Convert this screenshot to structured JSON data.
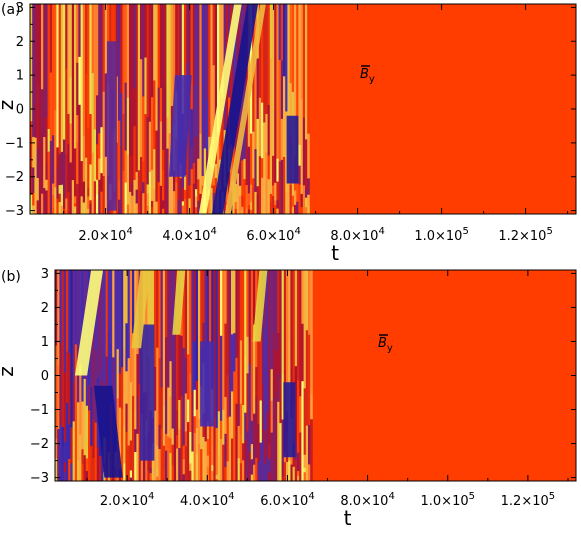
{
  "chart_data": [
    {
      "type": "heatmap",
      "panel_label": "(a)",
      "field_label": "B",
      "field_subscript": "y",
      "xlabel": "t",
      "ylabel": "z",
      "xlim": [
        2000,
        132000
      ],
      "ylim": [
        -3.1,
        3.1
      ],
      "x_ticks": [
        {
          "value": 20000,
          "mantissa": "2.0",
          "exp": "4"
        },
        {
          "value": 40000,
          "mantissa": "4.0",
          "exp": "4"
        },
        {
          "value": 60000,
          "mantissa": "6.0",
          "exp": "4"
        },
        {
          "value": 80000,
          "mantissa": "8.0",
          "exp": "4"
        },
        {
          "value": 100000,
          "mantissa": "1.0",
          "exp": "5"
        },
        {
          "value": 120000,
          "mantissa": "1.2",
          "exp": "5"
        }
      ],
      "y_ticks": [
        {
          "value": 3,
          "label": "3"
        },
        {
          "value": 2,
          "label": "2"
        },
        {
          "value": 1,
          "label": "1"
        },
        {
          "value": 0,
          "label": "0"
        },
        {
          "value": -1,
          "label": "−1"
        },
        {
          "value": -2,
          "label": "−2"
        },
        {
          "value": -3,
          "label": "−3"
        }
      ],
      "turbulent_until_t": 68500,
      "colormap": [
        "#17138e",
        "#4a2fb0",
        "#b0122d",
        "#ff3c00",
        "#ffa040",
        "#e3d03e",
        "#ffff7a"
      ],
      "decayed_color": "#ff3d00",
      "features": [
        {
          "t": 55000,
          "z_top": 3.1,
          "z_bottom": -3.1,
          "slope": -4200,
          "width": 1300,
          "level": 0.0
        },
        {
          "t": 51500,
          "z_top": 3.1,
          "z_bottom": -3.1,
          "slope": -4200,
          "width": 900,
          "level": 1.0
        },
        {
          "t": 57500,
          "z_top": 3.1,
          "z_bottom": -3.1,
          "slope": -4200,
          "width": 700,
          "level": 0.75
        },
        {
          "t": 64500,
          "z_top": -0.2,
          "z_bottom": -2.2,
          "slope": 0,
          "width": 1400,
          "level": 0.05
        },
        {
          "t": 38500,
          "z_top": 1.0,
          "z_bottom": -2.0,
          "slope": -1500,
          "width": 2000,
          "level": 0.15
        },
        {
          "t": 21500,
          "z_top": 2.0,
          "z_bottom": -3.0,
          "slope": 0,
          "width": 1200,
          "level": 0.2
        }
      ]
    },
    {
      "type": "heatmap",
      "panel_label": "(b)",
      "field_label": "B",
      "field_subscript": "y",
      "xlabel": "t",
      "ylabel": "z",
      "xlim": [
        2000,
        132000
      ],
      "ylim": [
        -3.1,
        3.1
      ],
      "x_ticks": [
        {
          "value": 20000,
          "mantissa": "2.0",
          "exp": "4"
        },
        {
          "value": 40000,
          "mantissa": "4.0",
          "exp": "4"
        },
        {
          "value": 60000,
          "mantissa": "6.0",
          "exp": "4"
        },
        {
          "value": 80000,
          "mantissa": "8.0",
          "exp": "4"
        },
        {
          "value": 100000,
          "mantissa": "1.0",
          "exp": "5"
        },
        {
          "value": 120000,
          "mantissa": "1.2",
          "exp": "5"
        }
      ],
      "y_ticks": [
        {
          "value": 3,
          "label": "3"
        },
        {
          "value": 2,
          "label": "2"
        },
        {
          "value": 1,
          "label": "1"
        },
        {
          "value": 0,
          "label": "0"
        },
        {
          "value": -1,
          "label": "−1"
        },
        {
          "value": -2,
          "label": "−2"
        },
        {
          "value": -3,
          "label": "−3"
        }
      ],
      "turbulent_until_t": 66000,
      "colormap": [
        "#17138e",
        "#4a2fb0",
        "#b0122d",
        "#ff3c00",
        "#ffa040",
        "#e3d03e",
        "#ffff7a"
      ],
      "decayed_color": "#ff3d00",
      "features": [
        {
          "t": 12500,
          "z_top": 3.1,
          "z_bottom": 0.0,
          "slope": -4000,
          "width": 1500,
          "level": 1.0
        },
        {
          "t": 14000,
          "z_top": -0.3,
          "z_bottom": -3.0,
          "slope": 3000,
          "width": 2300,
          "level": 0.0
        },
        {
          "t": 25000,
          "z_top": 1.5,
          "z_bottom": -2.5,
          "slope": 0,
          "width": 1800,
          "level": 0.1
        },
        {
          "t": 24500,
          "z_top": 3.1,
          "z_bottom": 0.8,
          "slope": -3000,
          "width": 1200,
          "level": 0.8
        },
        {
          "t": 60500,
          "z_top": -0.2,
          "z_bottom": -2.4,
          "slope": 0,
          "width": 1500,
          "level": 0.05
        },
        {
          "t": 40000,
          "z_top": 1.0,
          "z_bottom": -1.5,
          "slope": 0,
          "width": 1800,
          "level": 0.15
        },
        {
          "t": 33500,
          "z_top": 3.1,
          "z_bottom": 1.2,
          "slope": -2000,
          "width": 1000,
          "level": 0.85
        },
        {
          "t": 54000,
          "z_top": 3.1,
          "z_bottom": 1.0,
          "slope": -2500,
          "width": 1000,
          "level": 0.85
        }
      ]
    }
  ]
}
